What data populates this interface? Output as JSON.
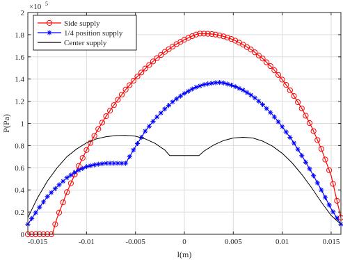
{
  "chart_data": {
    "type": "line",
    "xlabel": "l(m)",
    "ylabel": "P(Pa)",
    "y_exponent_label": "×10",
    "y_exponent_power": "5",
    "xlim": [
      -0.016,
      0.016
    ],
    "ylim": [
      0,
      200000
    ],
    "x_ticks": [
      -0.015,
      -0.01,
      -0.005,
      0,
      0.005,
      0.01,
      0.015
    ],
    "x_tick_labels": [
      "-0.015",
      "-0.01",
      "-0.005",
      "0",
      "0.005",
      "0.01",
      "0.015"
    ],
    "y_ticks": [
      0,
      20000,
      40000,
      60000,
      80000,
      100000,
      120000,
      140000,
      160000,
      180000,
      200000
    ],
    "y_tick_labels": [
      "0",
      "0.2",
      "0.4",
      "0.6",
      "0.8",
      "1",
      "1.2",
      "1.4",
      "1.6",
      "1.8",
      "2"
    ],
    "grid": true,
    "legend_position": "top-left",
    "series": [
      {
        "name": "Side supply",
        "color": "#ff0000",
        "marker": "circle",
        "line": "solid",
        "x": [
          -0.016,
          -0.015,
          -0.014,
          -0.0135,
          -0.013,
          -0.012,
          -0.011,
          -0.01,
          -0.009,
          -0.008,
          -0.007,
          -0.006,
          -0.005,
          -0.004,
          -0.003,
          -0.002,
          -0.001,
          0,
          0.001,
          0.0015,
          0.002,
          0.003,
          0.004,
          0.005,
          0.006,
          0.007,
          0.008,
          0.009,
          0.01,
          0.011,
          0.012,
          0.013,
          0.014,
          0.015,
          0.016
        ],
        "y": [
          0,
          0,
          0,
          0,
          15000,
          38000,
          58000,
          76000,
          92000,
          106500,
          119000,
          130500,
          140500,
          149500,
          157500,
          164500,
          170500,
          175500,
          179500,
          181000,
          181000,
          180500,
          178500,
          175500,
          171000,
          165500,
          158500,
          150000,
          139500,
          127500,
          113500,
          97000,
          77000,
          53000,
          15000
        ]
      },
      {
        "name": "1/4 position supply",
        "color": "#0000ff",
        "marker": "star",
        "line": "solid",
        "x": [
          -0.016,
          -0.015,
          -0.014,
          -0.013,
          -0.012,
          -0.011,
          -0.01,
          -0.009,
          -0.008,
          -0.007,
          -0.006,
          -0.005,
          -0.004,
          -0.003,
          -0.002,
          -0.001,
          0,
          0.001,
          0.002,
          0.003,
          0.0035,
          0.004,
          0.005,
          0.006,
          0.007,
          0.008,
          0.009,
          0.01,
          0.011,
          0.012,
          0.013,
          0.014,
          0.015,
          0.016
        ],
        "y": [
          9000,
          22000,
          34000,
          43000,
          51000,
          57000,
          61000,
          63000,
          64000,
          64000,
          64000,
          79000,
          93000,
          104000,
          113000,
          121000,
          127000,
          132000,
          135000,
          136500,
          137000,
          136500,
          134000,
          130000,
          124500,
          117000,
          108000,
          97000,
          85000,
          71000,
          56000,
          40000,
          23000,
          9000
        ]
      },
      {
        "name": "Center supply",
        "color": "#000000",
        "marker": "none",
        "line": "solid",
        "x": [
          -0.016,
          -0.015,
          -0.014,
          -0.013,
          -0.012,
          -0.011,
          -0.01,
          -0.009,
          -0.008,
          -0.007,
          -0.006,
          -0.005,
          -0.004,
          -0.003,
          -0.002,
          -0.0015,
          0,
          0.0015,
          0.002,
          0.003,
          0.004,
          0.005,
          0.006,
          0.007,
          0.008,
          0.009,
          0.01,
          0.011,
          0.012,
          0.013,
          0.014,
          0.015,
          0.016
        ],
        "y": [
          15000,
          33000,
          48000,
          60000,
          70000,
          77000,
          82500,
          86000,
          88000,
          89000,
          89200,
          88500,
          86000,
          82000,
          76000,
          71000,
          71000,
          71000,
          75000,
          80500,
          84500,
          86800,
          87500,
          86800,
          84000,
          79500,
          73000,
          64500,
          54000,
          42000,
          29000,
          17000,
          9000
        ]
      }
    ]
  }
}
